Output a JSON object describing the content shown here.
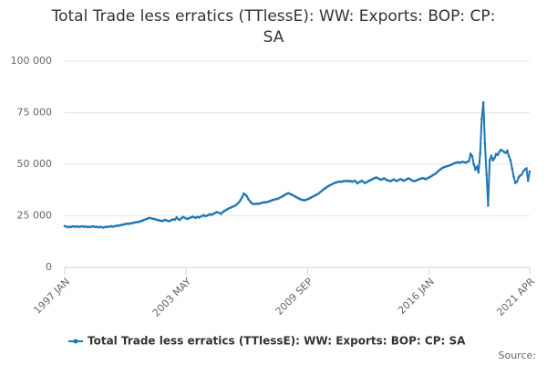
{
  "chart_data": {
    "type": "line",
    "title": [
      "Total Trade less erratics (TTlessE): WW: Exports: BOP: CP:",
      "SA"
    ],
    "source": "Source:",
    "categories": [
      "1997 JAN",
      null,
      null,
      null,
      null,
      null,
      null,
      null,
      null,
      null,
      null,
      null,
      null,
      null,
      null,
      null,
      null,
      null,
      null,
      null,
      null,
      null,
      null,
      null,
      null,
      null,
      null,
      null,
      null,
      null,
      null,
      null,
      null,
      null,
      null,
      null,
      null,
      null,
      null,
      null,
      null,
      null,
      null,
      null,
      null,
      null,
      null,
      null,
      null,
      null,
      null,
      null,
      null,
      null,
      null,
      null,
      null,
      null,
      null,
      null,
      null,
      null,
      null,
      null,
      null,
      null,
      null,
      null,
      null,
      null,
      null,
      null,
      null,
      null,
      null,
      null,
      "2003 MAY",
      null,
      null,
      null,
      null,
      null,
      null,
      null,
      null,
      null,
      null,
      null,
      null,
      null,
      null,
      null,
      null,
      null,
      null,
      null,
      null,
      null,
      null,
      null,
      null,
      null,
      null,
      null,
      null,
      null,
      null,
      null,
      null,
      null,
      null,
      null,
      null,
      null,
      null,
      null,
      null,
      null,
      null,
      null,
      null,
      null,
      null,
      null,
      null,
      null,
      null,
      null,
      null,
      null,
      null,
      null,
      null,
      null,
      null,
      null,
      null,
      null,
      null,
      null,
      null,
      null,
      null,
      null,
      null,
      null,
      null,
      null,
      null,
      null,
      null,
      null,
      "2009 SEP",
      null,
      null,
      null,
      null,
      null,
      null,
      null,
      null,
      null,
      null,
      null,
      null,
      null,
      null,
      null,
      null,
      null,
      null,
      null,
      null,
      null,
      null,
      null,
      null,
      null,
      null,
      null,
      null,
      null,
      null,
      null,
      null,
      null,
      null,
      null,
      null,
      null,
      null,
      null,
      null,
      null,
      null,
      null,
      null,
      null,
      null,
      null,
      null,
      null,
      null,
      null,
      null,
      null,
      null,
      null,
      null,
      null,
      null,
      null,
      null,
      null,
      null,
      null,
      null,
      null,
      null,
      null,
      null,
      null,
      null,
      null,
      null,
      null,
      null,
      null,
      "2016 JAN",
      null,
      null,
      null,
      null,
      null,
      null,
      null,
      null,
      null,
      null,
      null,
      null,
      null,
      null,
      null,
      null,
      null,
      null,
      null,
      null,
      null,
      null,
      null,
      null,
      null,
      null,
      null,
      null,
      null,
      null,
      null,
      null,
      null,
      null,
      null,
      null,
      null,
      null,
      null,
      null,
      null,
      null,
      null,
      null,
      null,
      null,
      null,
      null,
      null,
      null,
      null,
      null,
      null,
      null,
      null,
      null,
      null,
      null,
      null,
      null,
      null,
      null,
      "2021 APR"
    ],
    "series": [
      {
        "name": "Total Trade less erratics (TTlessE): WW: Exports: BOP: CP: SA",
        "color": "#1f77b4",
        "values": [
          20000,
          19800,
          19500,
          19700,
          19600,
          19900,
          19800,
          19700,
          19900,
          19600,
          19800,
          19900,
          19700,
          19800,
          19600,
          19700,
          19500,
          19800,
          19900,
          19600,
          19700,
          19400,
          19600,
          19500,
          19300,
          19500,
          19700,
          19600,
          19800,
          20000,
          19700,
          19900,
          20100,
          20300,
          20200,
          20500,
          20600,
          20900,
          21000,
          21200,
          21100,
          21400,
          21300,
          21600,
          21800,
          22000,
          21900,
          22300,
          22500,
          22800,
          23100,
          23400,
          23700,
          24000,
          23800,
          23600,
          23500,
          23200,
          23000,
          22800,
          22600,
          22400,
          22800,
          23000,
          22700,
          22400,
          22600,
          23000,
          23300,
          23100,
          24200,
          23400,
          23000,
          23800,
          24400,
          24100,
          23700,
          23500,
          23900,
          24200,
          24600,
          24300,
          24000,
          24500,
          24200,
          24600,
          24900,
          25300,
          24800,
          25100,
          25400,
          25800,
          25500,
          26000,
          26300,
          26800,
          26600,
          26300,
          26000,
          26900,
          27400,
          27800,
          28300,
          28700,
          29000,
          29400,
          29700,
          30100,
          30800,
          31500,
          32600,
          34000,
          35800,
          35300,
          34500,
          33000,
          32000,
          31100,
          30800,
          30700,
          30900,
          30800,
          31000,
          31200,
          31400,
          31600,
          31500,
          31800,
          32000,
          32300,
          32600,
          32900,
          33000,
          33200,
          33500,
          33900,
          34300,
          34800,
          35200,
          35700,
          36000,
          35600,
          35300,
          34900,
          34500,
          34000,
          33600,
          33200,
          32900,
          32700,
          32500,
          32800,
          33000,
          33400,
          33800,
          34200,
          34600,
          35000,
          35400,
          35900,
          36500,
          37200,
          37800,
          38300,
          38900,
          39400,
          39800,
          40200,
          40600,
          41000,
          41200,
          41400,
          41600,
          41500,
          41700,
          41900,
          41800,
          42000,
          41700,
          41900,
          41500,
          42000,
          41800,
          40800,
          41200,
          41600,
          42000,
          41400,
          40900,
          41300,
          41800,
          42200,
          42500,
          43000,
          43300,
          43600,
          43200,
          42800,
          42500,
          42900,
          43200,
          42600,
          42200,
          42000,
          41800,
          42300,
          42600,
          42100,
          41900,
          42400,
          42800,
          42500,
          42000,
          42300,
          42700,
          43100,
          42900,
          42300,
          42000,
          41800,
          42100,
          42500,
          42800,
          43000,
          43300,
          43100,
          42700,
          43200,
          43600,
          44000,
          44500,
          45000,
          45400,
          46100,
          46800,
          47500,
          48000,
          48500,
          48700,
          49000,
          49200,
          49500,
          49800,
          50200,
          50500,
          50800,
          51000,
          50700,
          50900,
          51200,
          51000,
          50800,
          51200,
          51500,
          55000,
          54000,
          50000,
          47500,
          48800,
          46000,
          55000,
          72000,
          80000,
          60000,
          45000,
          30000,
          52000,
          54000,
          52000,
          53000,
          55000,
          54500,
          56000,
          57000,
          56500,
          56000,
          55500,
          56500,
          54000,
          52000,
          48000,
          44000,
          41000,
          41500,
          43500,
          44500,
          45000,
          46500,
          47500,
          48000,
          42000,
          46500
        ]
      }
    ],
    "ylim": [
      0,
      100000
    ],
    "yticks": [
      0,
      {
        "value": 25000,
        "label": "25 000"
      },
      {
        "value": 50000,
        "label": "50 000"
      },
      {
        "value": 75000,
        "label": "75 000"
      },
      {
        "value": 100000,
        "label": "100 000"
      }
    ],
    "grid": true
  }
}
